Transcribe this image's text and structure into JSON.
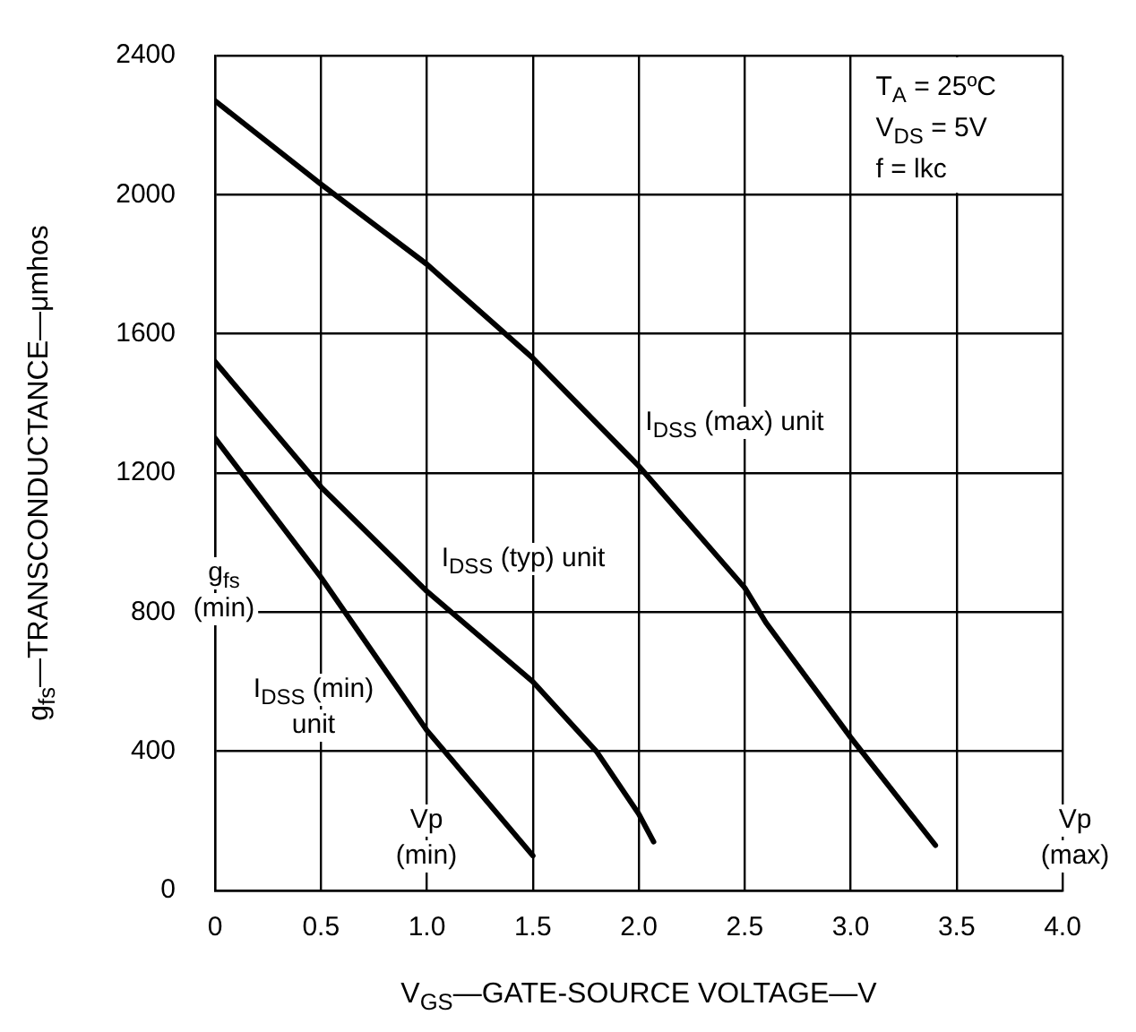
{
  "chart_data": {
    "type": "line",
    "xlabel": "V$_{GS}$—GATE-SOURCE VOLTAGE—V",
    "ylabel": "g$_{fs}$—TRANSCONDUCTANCE—μmhos",
    "xlim": [
      0,
      4
    ],
    "xticks": [
      0,
      0.5,
      {
        "value": 1,
        "label": "1.0"
      },
      1.5,
      {
        "value": 2,
        "label": "2.0"
      },
      2.5,
      {
        "value": 3,
        "label": "3.0"
      },
      3.5,
      {
        "value": 4,
        "label": "4.0"
      }
    ],
    "ylim": [
      0,
      2400
    ],
    "yticks": [
      0,
      400,
      800,
      1200,
      1600,
      2000,
      2400
    ],
    "grid": true,
    "legend": false,
    "marker": "none",
    "line_style": "solid",
    "series": [
      {
        "name": "I$_{DSS}$ (max) unit",
        "color": "#000000",
        "x": [
          0,
          0.5,
          1.0,
          1.5,
          2.0,
          2.5,
          2.6,
          3.0,
          3.4
        ],
        "values": [
          2270,
          2030,
          1800,
          1530,
          1220,
          870,
          770,
          440,
          130
        ]
      },
      {
        "name": "I$_{DSS}$ (typ) unit",
        "color": "#000000",
        "x": [
          0,
          0.5,
          1.0,
          1.5,
          1.8,
          2.0,
          2.07
        ],
        "values": [
          1520,
          1160,
          860,
          600,
          400,
          220,
          140
        ]
      },
      {
        "name": "I$_{DSS}$ (min)\nunit",
        "color": "#000000",
        "x": [
          0,
          0.5,
          1.0,
          1.5
        ],
        "values": [
          1300,
          900,
          460,
          100
        ]
      }
    ],
    "annotations": [
      "T$_{A}$ = 25ºC",
      "V$_{DS}$ = 5V",
      "f = lkc",
      "g$_{fs}$\n(min)",
      "Vp\n(min)",
      "Vp\n(max)"
    ]
  }
}
